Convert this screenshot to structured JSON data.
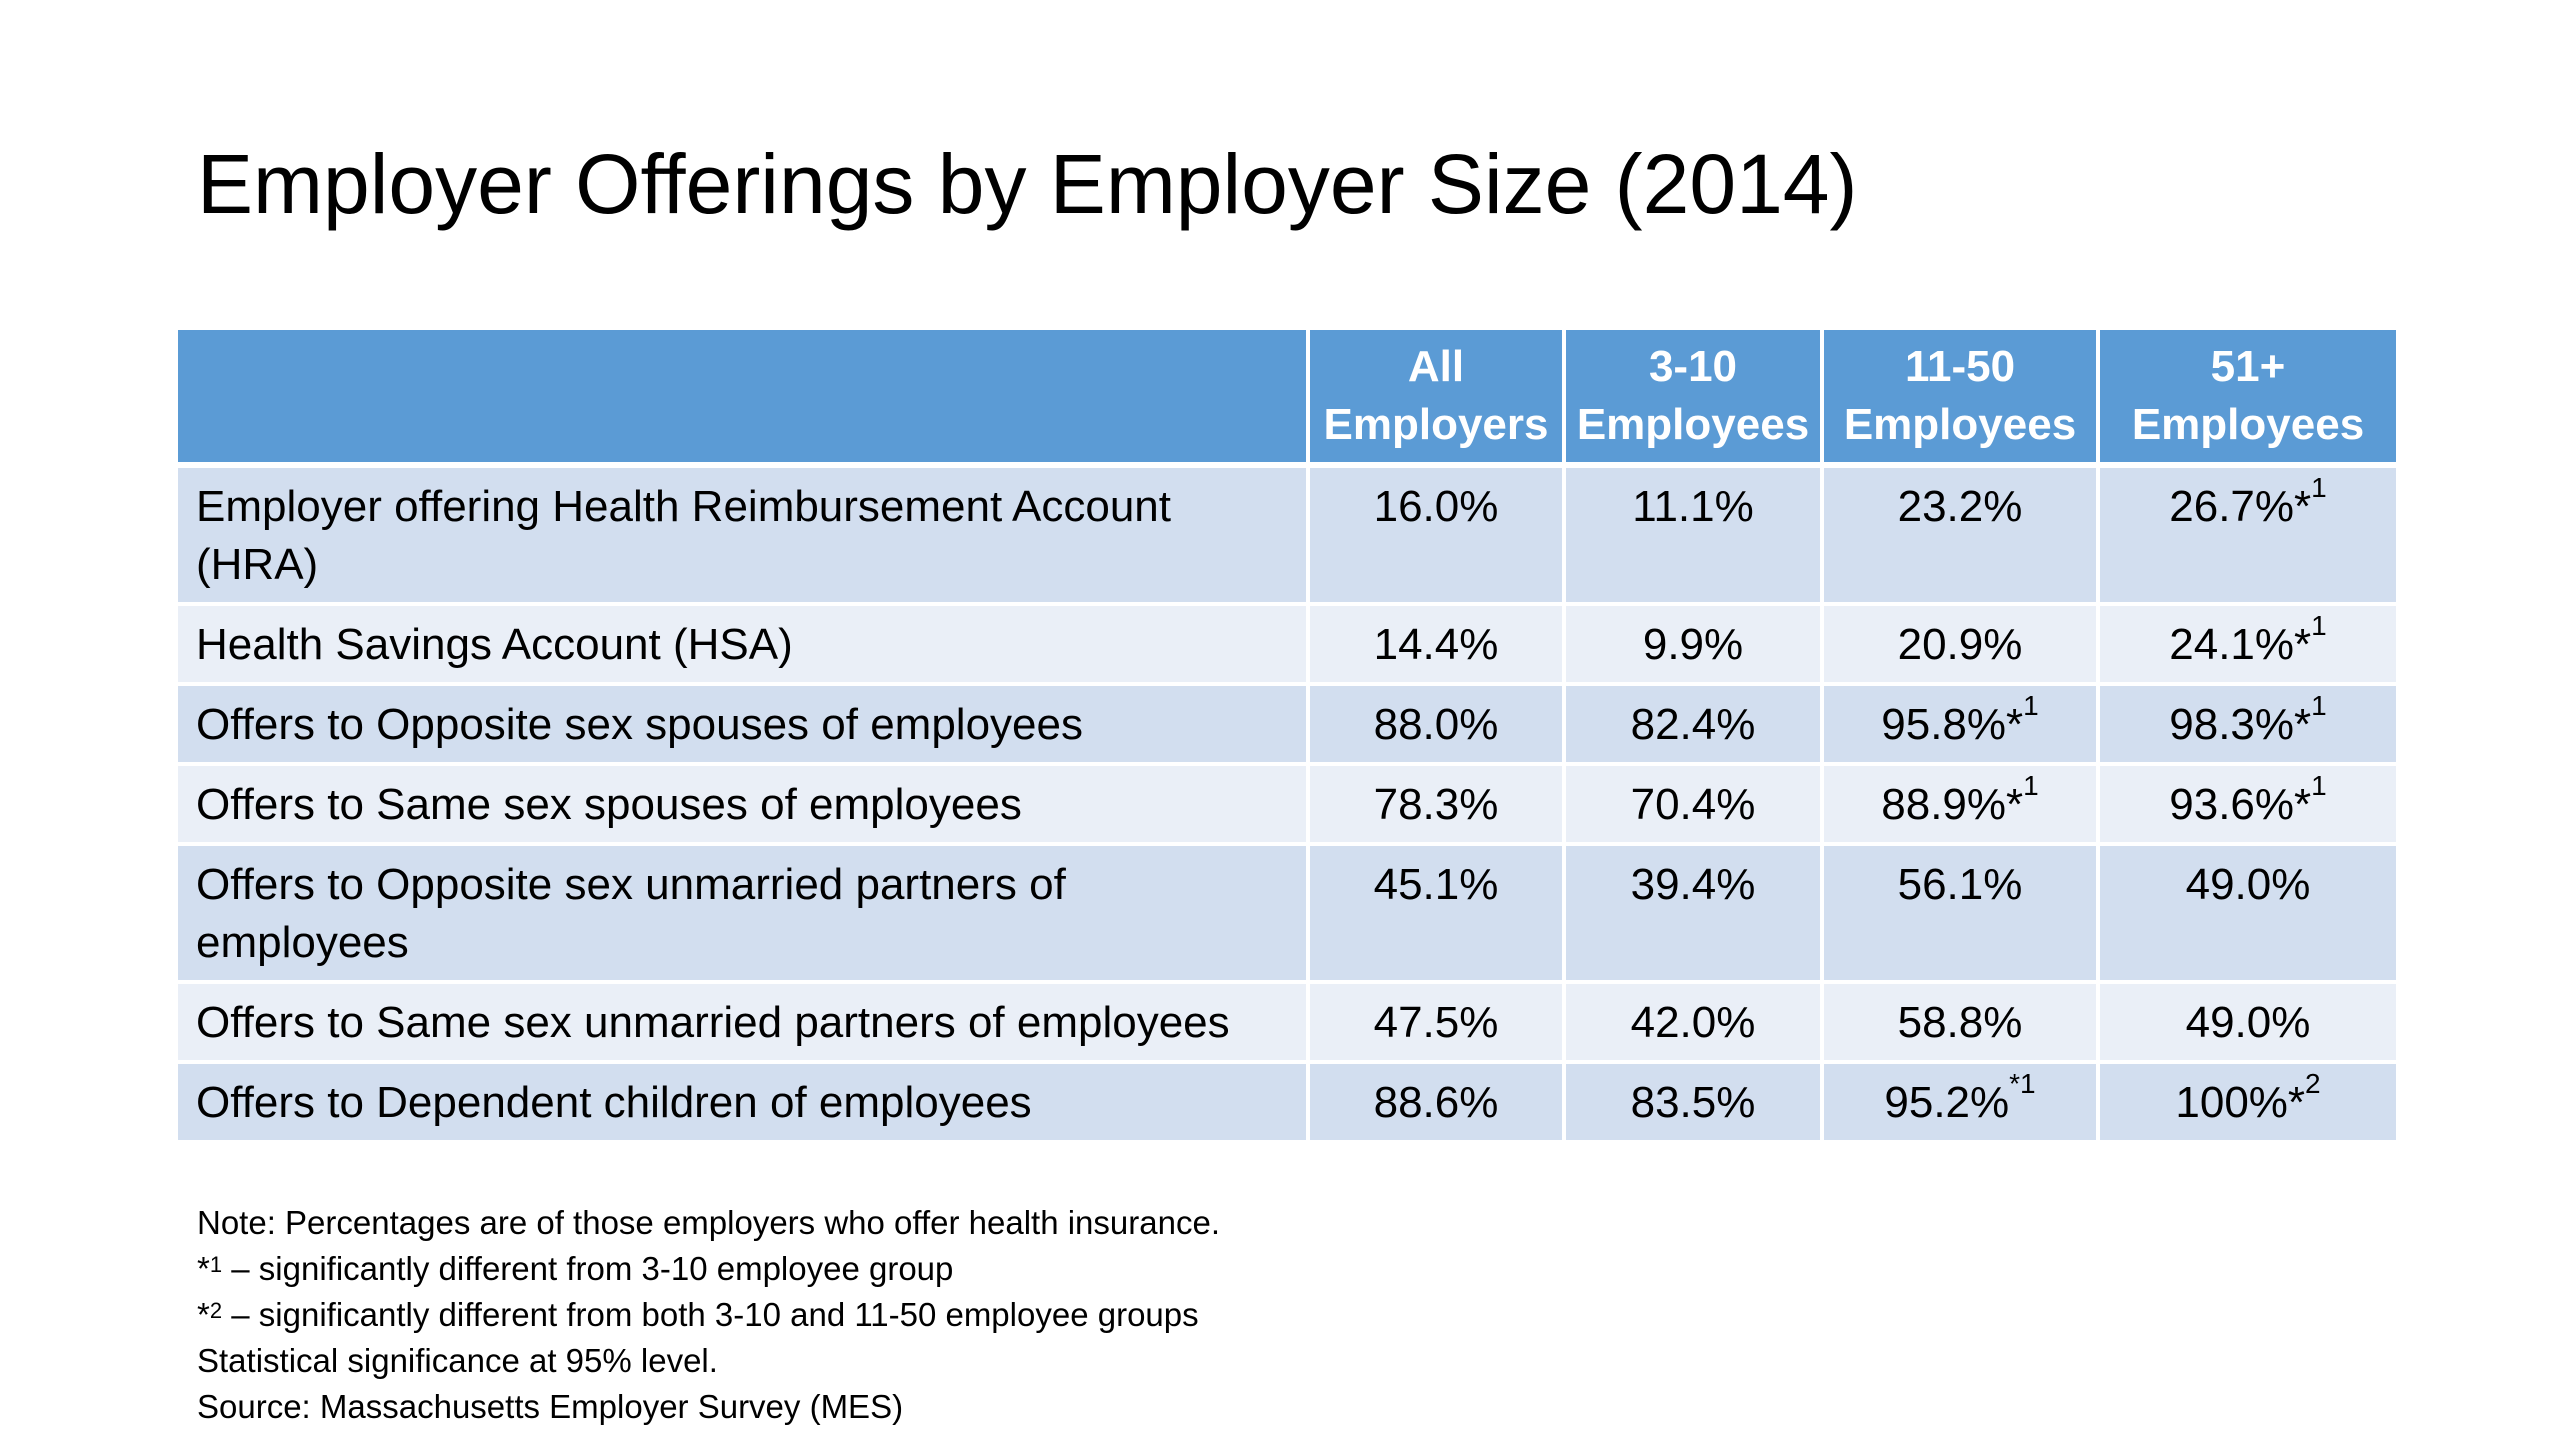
{
  "title": "Employer Offerings by Employer Size (2014)",
  "table": {
    "headers": [
      {
        "line1": "",
        "line2": ""
      },
      {
        "line1": "All",
        "line2": "Employers"
      },
      {
        "line1": "3-10",
        "line2": "Employees"
      },
      {
        "line1": "11-50",
        "line2": "Employees"
      },
      {
        "line1": "51+",
        "line2": "Employees"
      }
    ],
    "rows": [
      {
        "label": "Employer offering Health Reimbursement Account (HRA)",
        "cells": [
          {
            "value": "16.0%",
            "mark": ""
          },
          {
            "value": "11.1%",
            "mark": ""
          },
          {
            "value": "23.2%",
            "mark": ""
          },
          {
            "value": "26.7%*",
            "mark": "1"
          }
        ]
      },
      {
        "label": "Health Savings Account (HSA)",
        "cells": [
          {
            "value": "14.4%",
            "mark": ""
          },
          {
            "value": "9.9%",
            "mark": ""
          },
          {
            "value": "20.9%",
            "mark": ""
          },
          {
            "value": "24.1%*",
            "mark": "1"
          }
        ]
      },
      {
        "label": "Offers to Opposite sex spouses of employees",
        "cells": [
          {
            "value": "88.0%",
            "mark": ""
          },
          {
            "value": "82.4%",
            "mark": ""
          },
          {
            "value": "95.8%*",
            "mark": "1"
          },
          {
            "value": "98.3%*",
            "mark": "1"
          }
        ]
      },
      {
        "label": "Offers to Same sex spouses of employees",
        "cells": [
          {
            "value": "78.3%",
            "mark": ""
          },
          {
            "value": "70.4%",
            "mark": ""
          },
          {
            "value": "88.9%*",
            "mark": "1"
          },
          {
            "value": "93.6%*",
            "mark": "1"
          }
        ]
      },
      {
        "label": "Offers to Opposite sex unmarried partners of employees",
        "cells": [
          {
            "value": "45.1%",
            "mark": ""
          },
          {
            "value": "39.4%",
            "mark": ""
          },
          {
            "value": "56.1%",
            "mark": ""
          },
          {
            "value": "49.0%",
            "mark": ""
          }
        ]
      },
      {
        "label": "Offers to Same sex unmarried partners of employees",
        "cells": [
          {
            "value": "47.5%",
            "mark": ""
          },
          {
            "value": "42.0%",
            "mark": ""
          },
          {
            "value": "58.8%",
            "mark": ""
          },
          {
            "value": "49.0%",
            "mark": ""
          }
        ]
      },
      {
        "label": "Offers to Dependent children of employees",
        "cells": [
          {
            "value": "88.6%",
            "mark": ""
          },
          {
            "value": "83.5%",
            "mark": ""
          },
          {
            "value": "95.2%",
            "mark": "*1"
          },
          {
            "value": "100%*",
            "mark": "2"
          }
        ]
      }
    ]
  },
  "notes": {
    "line1": "Note: Percentages are of those employers who offer health insurance.",
    "line2_prefix": "*",
    "line2_mark": "1",
    "line2_text": " – significantly different from 3-10 employee group",
    "line3_prefix": "*",
    "line3_mark": "2",
    "line3_text": " – significantly different from both 3-10 and 11-50 employee groups",
    "line4": "Statistical significance at 95% level.",
    "line5": "Source: Massachusetts Employer Survey (MES)"
  },
  "colors": {
    "header_bg": "#5b9bd5",
    "row_odd_bg": "#d2deef",
    "row_even_bg": "#eaeff7"
  }
}
